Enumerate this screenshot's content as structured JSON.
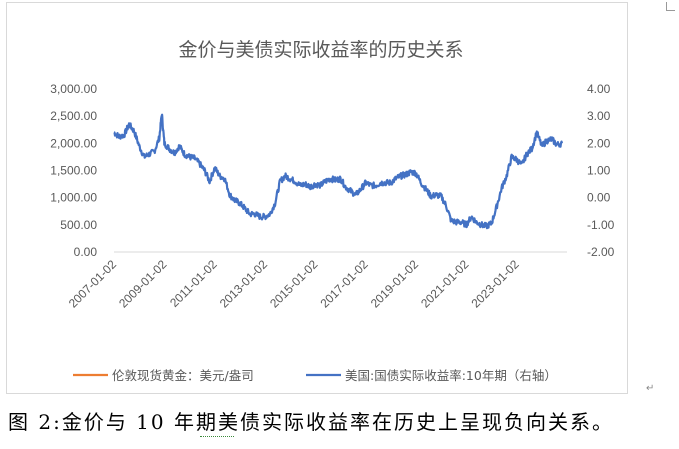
{
  "chart_data": {
    "type": "line",
    "title": "金价与美债实际收益率的历史关系",
    "x_tick_labels": [
      "2007-01-02",
      "2009-01-02",
      "2011-01-02",
      "2013-01-02",
      "2015-01-02",
      "2017-01-02",
      "2019-01-02",
      "2021-01-02",
      "2023-01-02"
    ],
    "x_range": [
      2007.0,
      2025.0
    ],
    "y_left": {
      "ticks": [
        "3,000.00",
        "2,500.00",
        "2,000.00",
        "1,500.00",
        "1,000.00",
        "500.00",
        "0.00"
      ],
      "range": [
        0,
        3000
      ]
    },
    "y_right": {
      "ticks": [
        "4.00",
        "3.00",
        "2.00",
        "1.00",
        "0.00",
        "-1.00",
        "-2.00"
      ],
      "range": [
        -2,
        4
      ]
    },
    "legend_position": "bottom",
    "series": [
      {
        "name": "伦敦现货黄金：美元/盎司",
        "axis": "left",
        "color": "#ED7D31",
        "x": [],
        "values": []
      },
      {
        "name": "美国:国债实际收益率:10年期（右轴）",
        "axis": "right",
        "color": "#4472C4",
        "x": [
          2007.0,
          2007.2,
          2007.4,
          2007.6,
          2007.8,
          2008.0,
          2008.2,
          2008.4,
          2008.6,
          2008.8,
          2008.9,
          2009.0,
          2009.2,
          2009.4,
          2009.6,
          2009.8,
          2010.0,
          2010.2,
          2010.4,
          2010.6,
          2010.8,
          2011.0,
          2011.2,
          2011.4,
          2011.6,
          2011.8,
          2012.0,
          2012.2,
          2012.4,
          2012.6,
          2012.8,
          2013.0,
          2013.2,
          2013.4,
          2013.6,
          2013.8,
          2014.0,
          2014.2,
          2014.4,
          2014.6,
          2014.8,
          2015.0,
          2015.2,
          2015.4,
          2015.6,
          2015.8,
          2016.0,
          2016.2,
          2016.4,
          2016.6,
          2016.8,
          2017.0,
          2017.2,
          2017.4,
          2017.6,
          2017.8,
          2018.0,
          2018.2,
          2018.4,
          2018.6,
          2018.8,
          2019.0,
          2019.2,
          2019.4,
          2019.6,
          2019.8,
          2020.0,
          2020.2,
          2020.4,
          2020.6,
          2020.8,
          2021.0,
          2021.2,
          2021.4,
          2021.6,
          2021.8,
          2022.0,
          2022.2,
          2022.4,
          2022.6,
          2022.8,
          2023.0,
          2023.2,
          2023.4,
          2023.6,
          2023.8,
          2024.0,
          2024.2,
          2024.4,
          2024.6,
          2024.8
        ],
        "values": [
          2.4,
          2.25,
          2.3,
          2.7,
          2.45,
          1.9,
          1.5,
          1.6,
          1.7,
          2.2,
          3.1,
          2.0,
          1.8,
          1.65,
          1.9,
          1.6,
          1.5,
          1.45,
          1.25,
          1.0,
          0.6,
          1.1,
          0.8,
          0.7,
          0.1,
          -0.1,
          -0.2,
          -0.4,
          -0.6,
          -0.6,
          -0.7,
          -0.7,
          -0.6,
          -0.2,
          0.6,
          0.8,
          0.7,
          0.6,
          0.45,
          0.5,
          0.4,
          0.5,
          0.45,
          0.6,
          0.7,
          0.65,
          0.7,
          0.4,
          0.25,
          0.1,
          0.3,
          0.55,
          0.45,
          0.45,
          0.55,
          0.55,
          0.55,
          0.7,
          0.8,
          0.85,
          0.95,
          0.9,
          0.55,
          0.3,
          0.05,
          0.1,
          0.05,
          -0.3,
          -0.85,
          -0.9,
          -0.9,
          -1.0,
          -0.7,
          -0.9,
          -1.0,
          -1.05,
          -0.95,
          -0.35,
          0.35,
          0.8,
          1.5,
          1.4,
          1.2,
          1.6,
          1.8,
          2.4,
          1.9,
          2.1,
          2.15,
          1.95,
          2.0
        ]
      }
    ]
  },
  "caption": "图 2:金价与 10 年期美债实际收益率在历史上呈现负向关系。",
  "para_mark": "↵"
}
